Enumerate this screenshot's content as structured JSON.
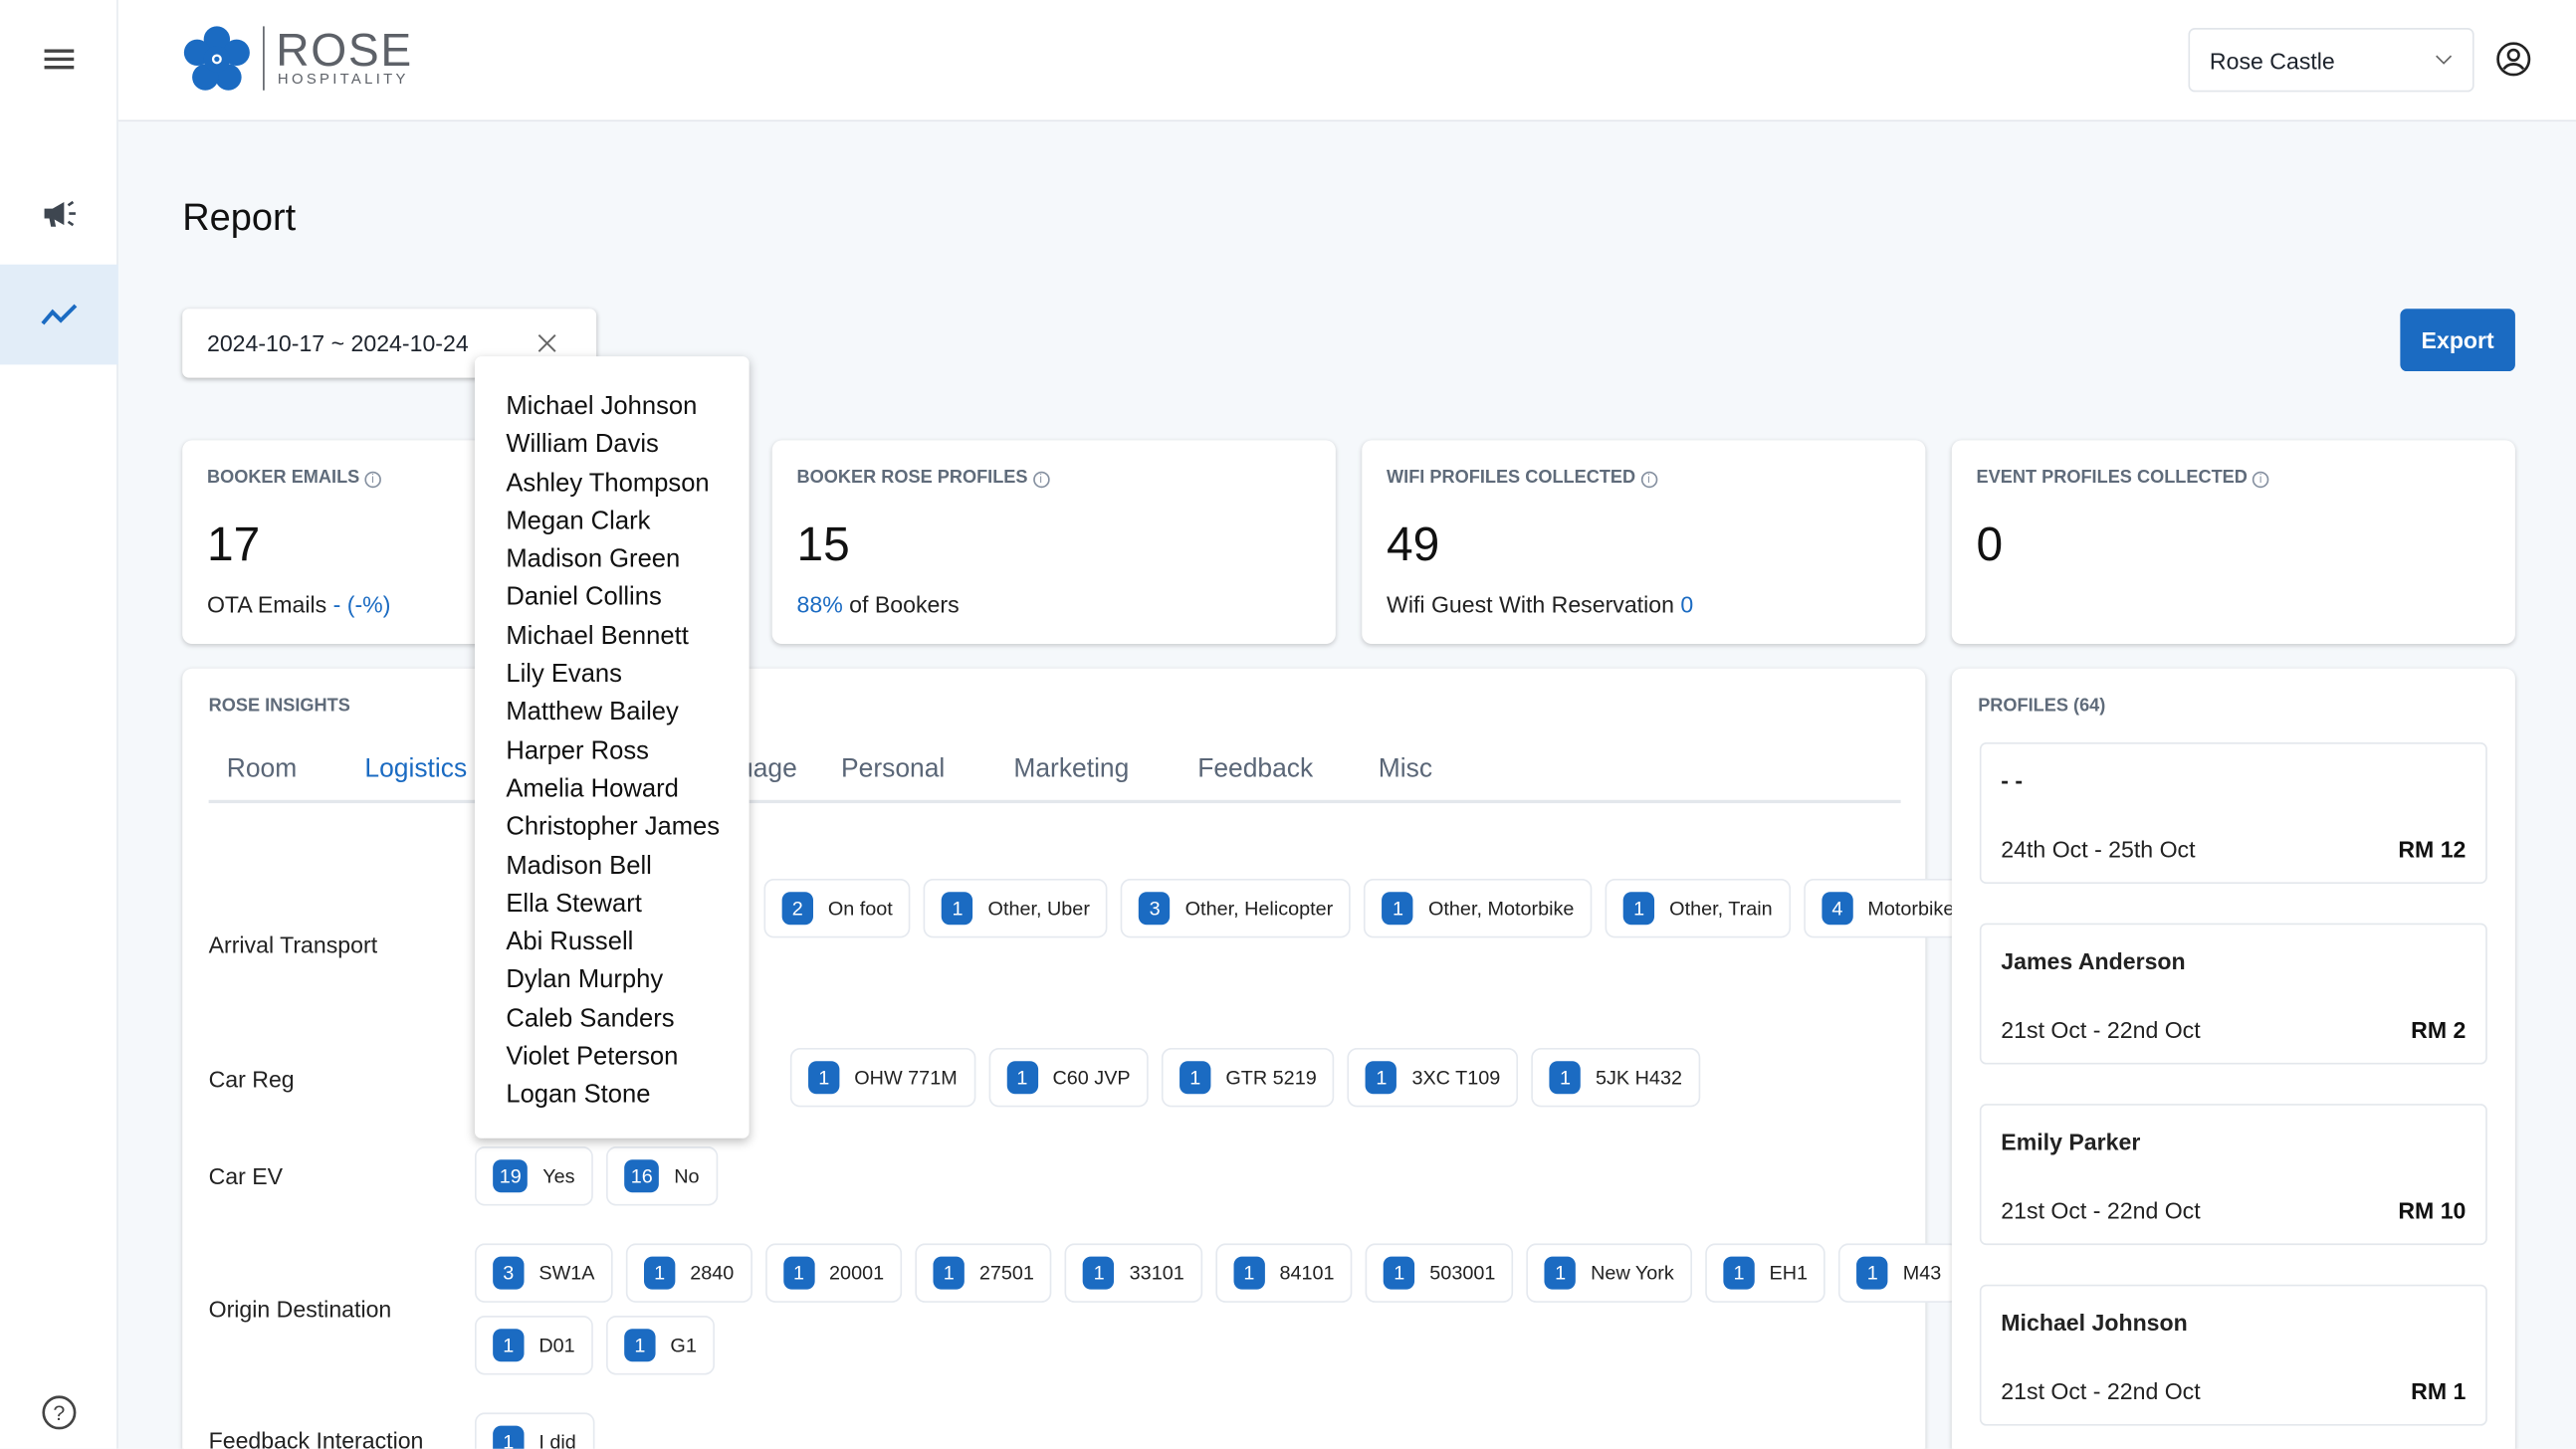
{
  "header": {
    "brand": "ROSE",
    "brand_sub": "HOSPITALITY",
    "property": "Rose Castle"
  },
  "page": {
    "title": "Report",
    "date_range": "2024-10-17 ~ 2024-10-24",
    "export_label": "Export"
  },
  "stats": [
    {
      "label": "BOOKER EMAILS",
      "value": "17",
      "sub_prefix": "OTA Emails ",
      "sub_value": "- (-%)",
      "sub_suffix": ""
    },
    {
      "label": "BOOKER ROSE PROFILES",
      "value": "15",
      "sub_prefix": "",
      "sub_value": "88%",
      "sub_suffix": " of Bookers"
    },
    {
      "label": "WIFI PROFILES COLLECTED",
      "value": "49",
      "sub_prefix": "Wifi Guest With Reservation ",
      "sub_value": "0",
      "sub_suffix": ""
    },
    {
      "label": "EVENT PROFILES COLLECTED",
      "value": "0",
      "sub_prefix": "",
      "sub_value": "",
      "sub_suffix": ""
    }
  ],
  "insights": {
    "title": "ROSE INSIGHTS",
    "tabs": [
      "Room",
      "Logistics",
      "Language",
      "Personal",
      "Marketing",
      "Feedback",
      "Misc"
    ],
    "active_tab": "Logistics",
    "rows": [
      {
        "label": "Arrival Transport",
        "chips": [
          {
            "count": "2",
            "text": "On foot"
          },
          {
            "count": "1",
            "text": "Other, Uber"
          },
          {
            "count": "3",
            "text": "Other, Helicopter"
          },
          {
            "count": "1",
            "text": "Other, Motorbike"
          },
          {
            "count": "1",
            "text": "Other, Train"
          },
          {
            "count": "4",
            "text": "Motorbike"
          }
        ]
      },
      {
        "label": "Car Reg",
        "chips": [
          {
            "count": "1",
            "text": "OHW 771M"
          },
          {
            "count": "1",
            "text": "C60 JVP"
          },
          {
            "count": "1",
            "text": "GTR 5219"
          },
          {
            "count": "1",
            "text": "3XC T109"
          },
          {
            "count": "1",
            "text": "5JK H432"
          }
        ]
      },
      {
        "label": "Car EV",
        "chips": [
          {
            "count": "19",
            "text": "Yes"
          },
          {
            "count": "16",
            "text": "No"
          }
        ]
      },
      {
        "label": "Origin Destination",
        "chips": [
          {
            "count": "3",
            "text": "SW1A"
          },
          {
            "count": "1",
            "text": "2840"
          },
          {
            "count": "1",
            "text": "20001"
          },
          {
            "count": "1",
            "text": "27501"
          },
          {
            "count": "1",
            "text": "33101"
          },
          {
            "count": "1",
            "text": "84101"
          },
          {
            "count": "1",
            "text": "503001"
          },
          {
            "count": "1",
            "text": "New York"
          },
          {
            "count": "1",
            "text": "EH1"
          },
          {
            "count": "1",
            "text": "M43"
          }
        ],
        "chips2": [
          {
            "count": "1",
            "text": "D01"
          },
          {
            "count": "1",
            "text": "G1"
          }
        ]
      },
      {
        "label": "Feedback Interaction",
        "chips": [
          {
            "count": "1",
            "text": "I did"
          }
        ]
      }
    ]
  },
  "dropdown": [
    "Michael Johnson",
    "William Davis",
    "Ashley Thompson",
    "Megan Clark",
    "Madison Green",
    "Daniel Collins",
    "Michael Bennett",
    "Lily Evans",
    "Matthew Bailey",
    "Harper Ross",
    "Amelia Howard",
    "Christopher James",
    "Madison Bell",
    "Ella Stewart",
    "Abi Russell",
    "Dylan Murphy",
    "Caleb Sanders",
    "Violet Peterson",
    "Logan Stone"
  ],
  "profiles": {
    "title": "PROFILES (64)",
    "items": [
      {
        "name": "- -",
        "dates": "24th Oct - 25th Oct",
        "amount": "RM 12"
      },
      {
        "name": "James Anderson",
        "dates": "21st Oct - 22nd Oct",
        "amount": "RM 2"
      },
      {
        "name": "Emily Parker",
        "dates": "21st Oct - 22nd Oct",
        "amount": "RM 10"
      },
      {
        "name": "Michael Johnson",
        "dates": "21st Oct - 22nd Oct",
        "amount": "RM 1"
      }
    ]
  },
  "colors": {
    "accent": "#1b6bc2",
    "background": "#f5f8fb"
  }
}
